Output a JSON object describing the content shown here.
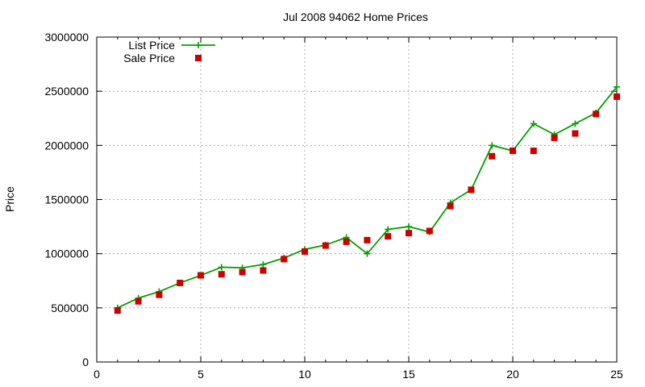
{
  "chart_data": {
    "type": "line",
    "title": "Jul 2008 94062 Home Prices",
    "xlabel": "",
    "ylabel": "Price",
    "xlim": [
      0,
      25
    ],
    "ylim": [
      0,
      3000000
    ],
    "x_ticks": [
      0,
      5,
      10,
      15,
      20,
      25
    ],
    "y_ticks": [
      0,
      500000,
      1000000,
      1500000,
      2000000,
      2500000,
      3000000
    ],
    "grid": true,
    "legend_position": "top-left",
    "series": [
      {
        "name": "List Price",
        "style": "line+cross",
        "color": "#00a000",
        "x": [
          1,
          2,
          3,
          4,
          5,
          6,
          7,
          8,
          9,
          10,
          11,
          12,
          13,
          14,
          15,
          16,
          17,
          18,
          19,
          20,
          21,
          22,
          23,
          24,
          25
        ],
        "values": [
          500000,
          590000,
          650000,
          730000,
          800000,
          875000,
          870000,
          900000,
          960000,
          1040000,
          1080000,
          1150000,
          1000000,
          1225000,
          1250000,
          1200000,
          1470000,
          1590000,
          2000000,
          1950000,
          2200000,
          2100000,
          2200000,
          2300000,
          2540000
        ]
      },
      {
        "name": "Sale Price",
        "style": "square",
        "color": "#cc0000",
        "x": [
          1,
          2,
          3,
          4,
          5,
          6,
          7,
          8,
          9,
          10,
          11,
          12,
          13,
          14,
          15,
          16,
          17,
          18,
          19,
          20,
          21,
          22,
          23,
          24,
          25
        ],
        "values": [
          475000,
          560000,
          620000,
          730000,
          800000,
          810000,
          830000,
          845000,
          950000,
          1020000,
          1075000,
          1110000,
          1125000,
          1160000,
          1190000,
          1210000,
          1440000,
          1590000,
          1900000,
          1950000,
          1950000,
          2070000,
          2110000,
          2290000,
          2450000
        ]
      }
    ]
  }
}
